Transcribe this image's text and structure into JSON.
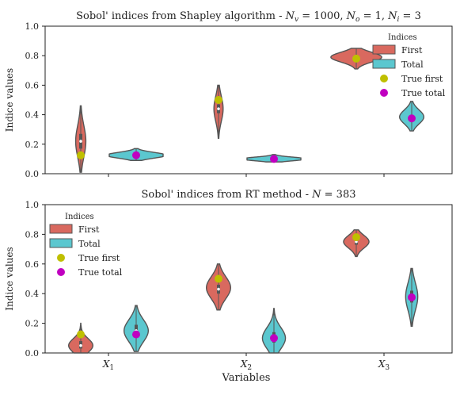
{
  "figure": {
    "xlabel": "Variables"
  },
  "colors": {
    "first": "#d9695f",
    "total": "#5bc7cf",
    "true_first": "#bfbf00",
    "true_total": "#c000c0",
    "violin_edge": "#555555"
  },
  "chart_data": [
    {
      "type": "violin",
      "title": "Sobol' indices from Shapley algorithm - N_v = 1000, N_o = 1, N_i = 3",
      "title_parts": {
        "prefix": "Sobol' indices from Shapley algorithm - ",
        "Nv_value": "1000",
        "No_value": "1",
        "Ni_value": "3"
      },
      "ylabel": "Indice values",
      "ylim": [
        0.0,
        1.0
      ],
      "yticks": [
        "0.0",
        "0.2",
        "0.4",
        "0.6",
        "0.8",
        "1.0"
      ],
      "categories": [
        "X_1",
        "X_2",
        "X_3"
      ],
      "legend": {
        "title": "Indices",
        "placement": "upper right",
        "entries": [
          "First",
          "Total",
          "True first",
          "True total"
        ]
      },
      "series": [
        {
          "name": "First",
          "violins": [
            {
              "min": 0.01,
              "max": 0.46,
              "median": 0.22,
              "q1": 0.17,
              "q3": 0.27,
              "mode": 0.22,
              "halfwidth": 0.42
            },
            {
              "min": 0.24,
              "max": 0.6,
              "median": 0.44,
              "q1": 0.41,
              "q3": 0.47,
              "mode": 0.44,
              "halfwidth": 0.38
            },
            {
              "min": 0.71,
              "max": 0.85,
              "median": 0.79,
              "q1": 0.775,
              "q3": 0.8,
              "mode": 0.79,
              "halfwidth": 2.1
            }
          ]
        },
        {
          "name": "Total",
          "violins": [
            {
              "min": 0.09,
              "max": 0.17,
              "median": 0.125,
              "q1": 0.115,
              "q3": 0.135,
              "mode": 0.125,
              "halfwidth": 2.5
            },
            {
              "min": 0.08,
              "max": 0.13,
              "median": 0.1,
              "q1": 0.095,
              "q3": 0.105,
              "mode": 0.1,
              "halfwidth": 2.7
            },
            {
              "min": 0.29,
              "max": 0.49,
              "median": 0.38,
              "q1": 0.365,
              "q3": 0.395,
              "mode": 0.385,
              "halfwidth": 1.0
            }
          ]
        }
      ],
      "true_values": {
        "first": [
          0.125,
          0.5,
          0.78
        ],
        "total": [
          0.125,
          0.1,
          0.375
        ]
      }
    },
    {
      "type": "violin",
      "title": "Sobol' indices from RT method - N = 383",
      "title_parts": {
        "prefix": "Sobol' indices from RT method - ",
        "N_value": "383"
      },
      "ylabel": "Indice values",
      "ylim": [
        0.0,
        1.0
      ],
      "yticks": [
        "0.0",
        "0.2",
        "0.4",
        "0.6",
        "0.8",
        "1.0"
      ],
      "categories": [
        "X_1",
        "X_2",
        "X_3"
      ],
      "legend": {
        "title": "Indices",
        "placement": "upper left",
        "entries": [
          "First",
          "Total",
          "True first",
          "True total"
        ]
      },
      "series": [
        {
          "name": "First",
          "violins": [
            {
              "min": 0.0,
              "max": 0.2,
              "median": 0.05,
              "q1": 0.03,
              "q3": 0.08,
              "mode": 0.05,
              "halfwidth": 1.0
            },
            {
              "min": 0.29,
              "max": 0.6,
              "median": 0.43,
              "q1": 0.4,
              "q3": 0.46,
              "mode": 0.44,
              "halfwidth": 1.0
            },
            {
              "min": 0.65,
              "max": 0.83,
              "median": 0.75,
              "q1": 0.73,
              "q3": 0.77,
              "mode": 0.75,
              "halfwidth": 1.05
            }
          ]
        },
        {
          "name": "Total",
          "violins": [
            {
              "min": 0.01,
              "max": 0.32,
              "median": 0.15,
              "q1": 0.11,
              "q3": 0.19,
              "mode": 0.15,
              "halfwidth": 1.0
            },
            {
              "min": 0.0,
              "max": 0.3,
              "median": 0.1,
              "q1": 0.07,
              "q3": 0.14,
              "mode": 0.1,
              "halfwidth": 0.95
            },
            {
              "min": 0.18,
              "max": 0.57,
              "median": 0.38,
              "q1": 0.34,
              "q3": 0.42,
              "mode": 0.38,
              "halfwidth": 0.5
            }
          ]
        }
      ],
      "true_values": {
        "first": [
          0.125,
          0.5,
          0.78
        ],
        "total": [
          0.125,
          0.1,
          0.375
        ]
      }
    }
  ]
}
